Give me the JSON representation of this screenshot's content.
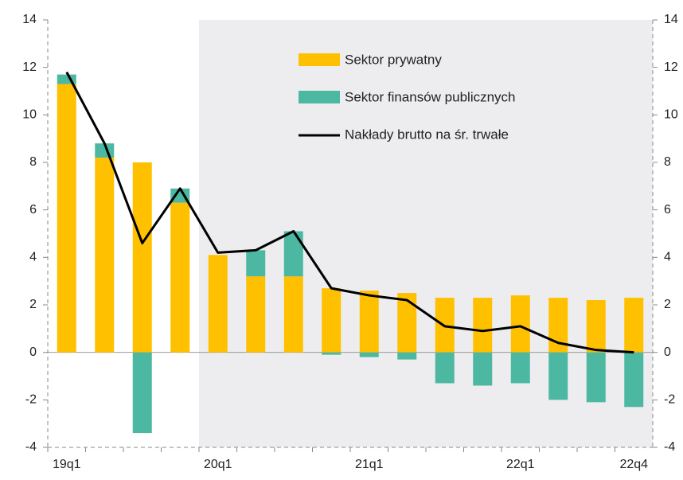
{
  "chart_data": {
    "type": "bar",
    "categories": [
      "19q1",
      null,
      null,
      null,
      "20q1",
      null,
      null,
      null,
      "21q1",
      null,
      null,
      null,
      "22q1",
      null,
      null,
      "22q4"
    ],
    "series": [
      {
        "name": "Sektor prywatny",
        "type": "bar",
        "color": "#FFC000",
        "values": [
          11.3,
          8.2,
          8.0,
          6.3,
          4.1,
          3.2,
          3.2,
          2.7,
          2.6,
          2.5,
          2.3,
          2.3,
          2.4,
          2.3,
          2.2,
          2.3
        ]
      },
      {
        "name": "Sektor finansów publicznych",
        "type": "bar",
        "color": "#4DB8A2",
        "values": [
          0.4,
          0.6,
          -3.4,
          0.6,
          0.0,
          1.1,
          1.9,
          -0.1,
          -0.2,
          -0.3,
          -1.3,
          -1.4,
          -1.3,
          -2.0,
          -2.1,
          -2.3
        ]
      },
      {
        "name": "Nakłady brutto na śr. trwałe",
        "type": "line",
        "color": "#000000",
        "values": [
          11.8,
          8.8,
          4.6,
          6.9,
          4.2,
          4.3,
          5.1,
          2.7,
          2.4,
          2.2,
          1.1,
          0.9,
          1.1,
          0.4,
          0.1,
          0.0
        ]
      }
    ],
    "stacked": true,
    "shade_from_category": 4,
    "ylim": [
      -4,
      14
    ],
    "yticks": [
      -4,
      -2,
      0,
      2,
      4,
      6,
      8,
      10,
      12,
      14
    ],
    "y2lim": [
      -4,
      14
    ],
    "y2ticks": [
      -4,
      -2,
      0,
      2,
      4,
      6,
      8,
      10,
      12,
      14
    ]
  }
}
